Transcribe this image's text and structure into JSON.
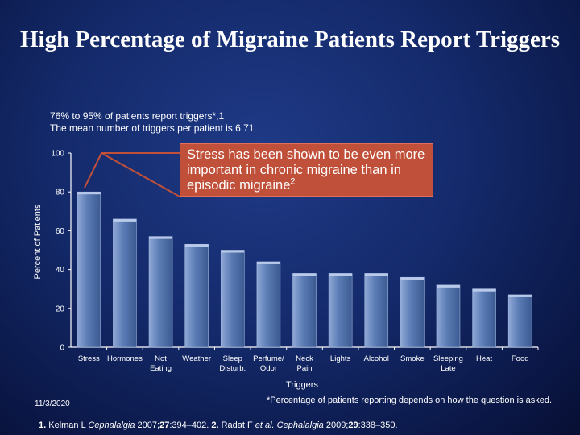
{
  "slide": {
    "title": "High Percentage of Migraine Patients Report Triggers",
    "subtitle_line1": "76% to 95% of patients report triggers*,1",
    "subtitle_line2": "The mean number of triggers per patient is 6.71",
    "callout_text": "Stress has been shown to be even more important in chronic migraine than in episodic migraine",
    "callout_sup": "2",
    "date": "11/3/2020",
    "footnote": "*Percentage of patients reporting depends on how the question is asked.",
    "references": {
      "r1_num": "1.",
      "r1_author": " Kelman L ",
      "r1_journal": "Cephalalgia",
      "r1_year": " 2007;",
      "r1_vol": "27",
      "r1_pages": ":394–402. ",
      "r2_num": "2.",
      "r2_author": " Radat F ",
      "r2_etal": "et al.",
      "r2_journal": " Cephalalgia",
      "r2_year": " 2009;",
      "r2_vol": "29",
      "r2_pages": ":338–350."
    }
  },
  "colors": {
    "bar": "#5a7bb4",
    "bar_top": "#8fa8d6",
    "callout": "#c0503a",
    "axis": "#ffffff"
  },
  "chart_data": {
    "type": "bar",
    "ylabel": "Percent of Patients",
    "xlabel": "Triggers",
    "ylim": [
      0,
      100
    ],
    "yticks": [
      0,
      20,
      40,
      60,
      80,
      100
    ],
    "grid": false,
    "categories": [
      [
        "Stress"
      ],
      [
        "Hormones"
      ],
      [
        "Not",
        "Eating"
      ],
      [
        "Weather"
      ],
      [
        "Sleep",
        "Disturb."
      ],
      [
        "Perfume/",
        "Odor"
      ],
      [
        "Neck",
        "Pain"
      ],
      [
        "Lights"
      ],
      [
        "Alcohol"
      ],
      [
        "Smoke"
      ],
      [
        "Sleeping",
        "Late"
      ],
      [
        "Heat"
      ],
      [
        "Food"
      ]
    ],
    "values": [
      80,
      66,
      57,
      53,
      50,
      44,
      38,
      38,
      38,
      36,
      32,
      30,
      27
    ]
  }
}
